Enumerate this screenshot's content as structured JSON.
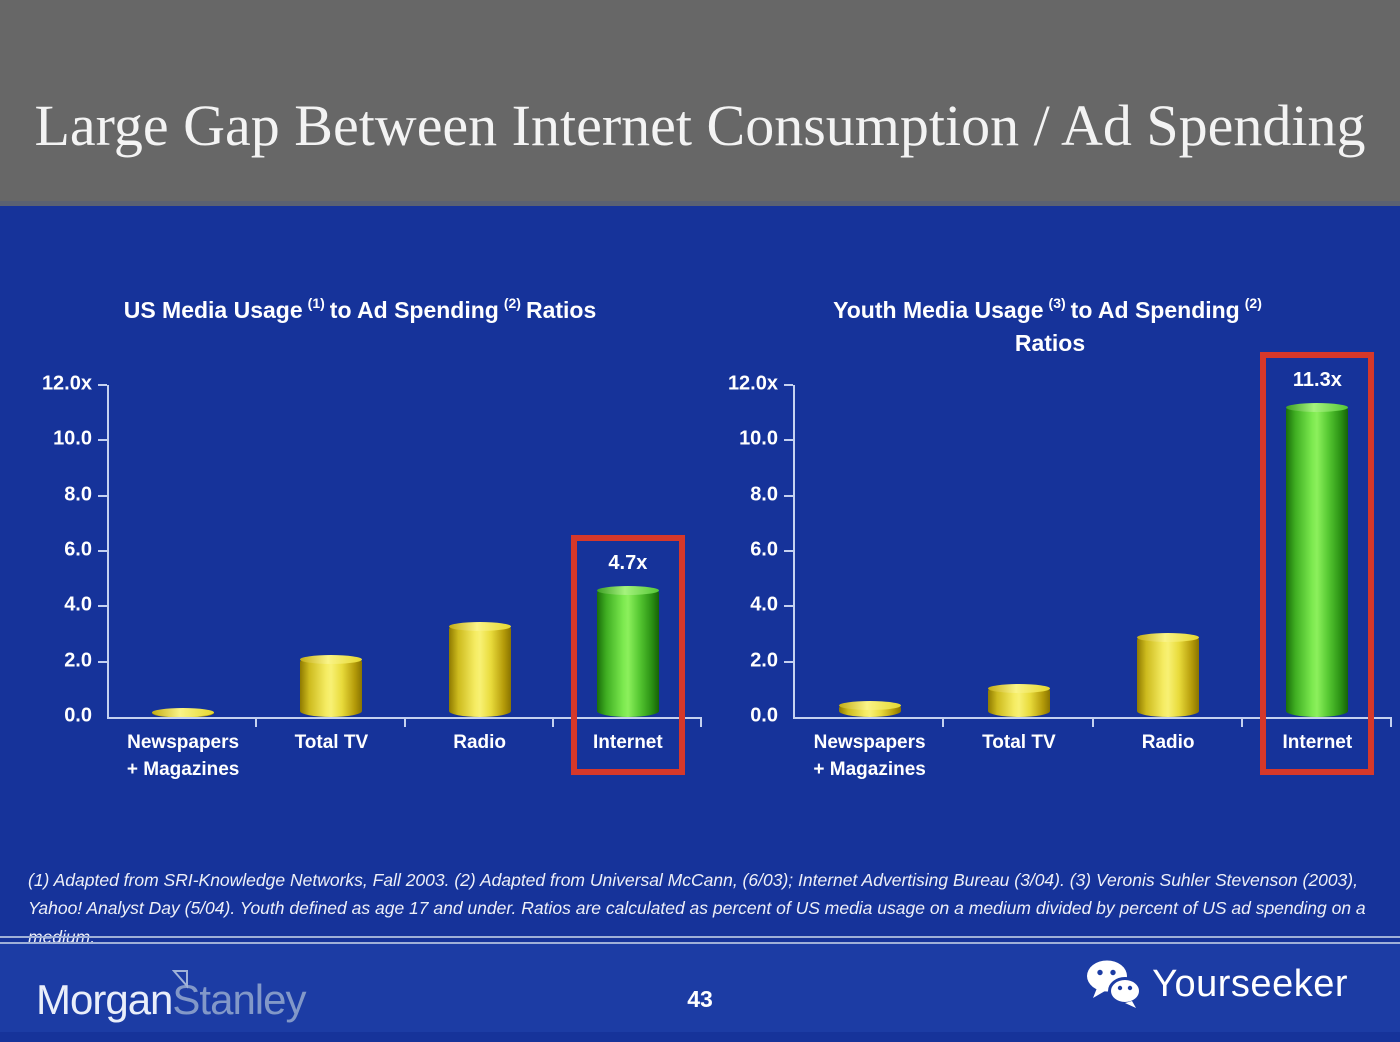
{
  "slide": {
    "title": "Large Gap Between Internet Consumption / Ad Spending",
    "footnote": "(1) Adapted from SRI-Knowledge Networks, Fall 2003.  (2) Adapted from Universal McCann, (6/03); Internet Advertising Bureau (3/04). (3) Veronis Suhler Stevenson (2003), Yahoo! Analyst Day (5/04).  Youth defined as age 17 and under.  Ratios are calculated as percent of US media usage on a medium divided by percent of US ad spending on a medium.",
    "page_number": "43",
    "footer": {
      "brand_word_1": "Morgan",
      "brand_word_2": "Stanley",
      "brand_right": "Yourseeker",
      "brand_right_icon": "wechat-icon"
    }
  },
  "colors": {
    "header_gray": "#676767",
    "background_blue": "#16339a",
    "footer_blue": "#1c3ca4",
    "bar_yellow": "#f0e84b",
    "bar_green": "#66d83e",
    "highlight_red": "#d6382a",
    "axis_light_blue": "#c5d1f0",
    "text_white": "#ffffff"
  },
  "chart_data": [
    {
      "type": "bar",
      "title": {
        "t1": "US Media Usage",
        "s1": "(1)",
        "t2": "to Ad Spending",
        "s2": "(2)",
        "t3": "Ratios"
      },
      "ylabel": "",
      "xlabel": "",
      "ylim": [
        0,
        12
      ],
      "grid": false,
      "legend": "none",
      "yticks": [
        {
          "value": 0,
          "label": "0.0"
        },
        {
          "value": 2,
          "label": "2.0"
        },
        {
          "value": 4,
          "label": "4.0"
        },
        {
          "value": 6,
          "label": "6.0"
        },
        {
          "value": 8,
          "label": "8.0"
        },
        {
          "value": 10,
          "label": "10.0"
        },
        {
          "value": 12,
          "label": "12.0x"
        }
      ],
      "categories": [
        {
          "name": "Newspapers + Magazines",
          "label_lines": [
            "Newspapers",
            "+ Magazines"
          ],
          "value": 0.3,
          "color": "yellow",
          "highlighted": false
        },
        {
          "name": "Total TV",
          "label_lines": [
            "Total TV"
          ],
          "value": 2.2,
          "color": "yellow",
          "highlighted": false
        },
        {
          "name": "Radio",
          "label_lines": [
            "Radio"
          ],
          "value": 3.4,
          "color": "yellow",
          "highlighted": false
        },
        {
          "name": "Internet",
          "label_lines": [
            "Internet"
          ],
          "value": 4.7,
          "color": "green",
          "value_label": "4.7x",
          "highlighted": true
        }
      ]
    },
    {
      "type": "bar",
      "title": {
        "t1": "Youth Media Usage",
        "s1": "(3)",
        "t2": "to Ad Spending",
        "s2": "(2)",
        "t3": "Ratios"
      },
      "ylabel": "",
      "xlabel": "",
      "ylim": [
        0,
        12
      ],
      "grid": false,
      "legend": "none",
      "yticks": [
        {
          "value": 0,
          "label": "0.0"
        },
        {
          "value": 2,
          "label": "2.0"
        },
        {
          "value": 4,
          "label": "4.0"
        },
        {
          "value": 6,
          "label": "6.0"
        },
        {
          "value": 8,
          "label": "8.0"
        },
        {
          "value": 10,
          "label": "10.0"
        },
        {
          "value": 12,
          "label": "12.0x"
        }
      ],
      "categories": [
        {
          "name": "Newspapers + Magazines",
          "label_lines": [
            "Newspapers",
            "+ Magazines"
          ],
          "value": 0.55,
          "color": "yellow",
          "highlighted": false
        },
        {
          "name": "Total TV",
          "label_lines": [
            "Total TV"
          ],
          "value": 1.15,
          "color": "yellow",
          "highlighted": false
        },
        {
          "name": "Radio",
          "label_lines": [
            "Radio"
          ],
          "value": 3.0,
          "color": "yellow",
          "highlighted": false
        },
        {
          "name": "Internet",
          "label_lines": [
            "Internet"
          ],
          "value": 11.3,
          "color": "green",
          "value_label": "11.3x",
          "highlighted": true
        }
      ]
    }
  ]
}
